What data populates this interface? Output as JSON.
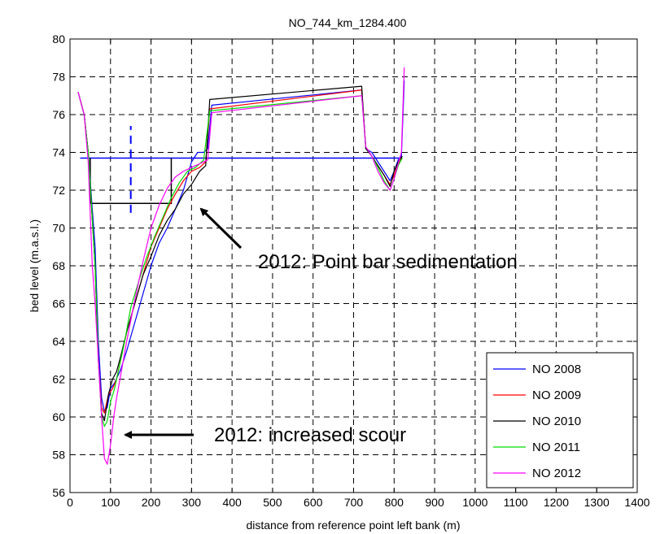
{
  "chart_data": {
    "type": "line",
    "title": "NO_744_km_1284.400",
    "xlabel": "distance from reference point left bank (m)",
    "ylabel": "bed level (m.a.s.l.)",
    "xlim": [
      0,
      1400
    ],
    "ylim": [
      56,
      80
    ],
    "xticks": [
      0,
      100,
      200,
      300,
      400,
      500,
      600,
      700,
      800,
      900,
      1000,
      1100,
      1200,
      1300,
      1400
    ],
    "yticks": [
      56,
      58,
      60,
      62,
      64,
      66,
      68,
      70,
      72,
      74,
      76,
      78,
      80
    ],
    "grid": true,
    "legend_position": "bottom-right",
    "series": [
      {
        "name": "NO 2008",
        "color": "#0000ff",
        "x": [
          20,
          35,
          45,
          55,
          62,
          70,
          78,
          85,
          92,
          100,
          110,
          125,
          140,
          160,
          180,
          200,
          220,
          240,
          260,
          280,
          300,
          315,
          330,
          340,
          350,
          720,
          730,
          745,
          760,
          775,
          790,
          800,
          810,
          818,
          825
        ],
        "y": [
          77.2,
          76,
          74,
          71,
          69,
          64,
          61,
          60.3,
          60.5,
          61.5,
          61.8,
          62.5,
          63.5,
          65,
          66.5,
          68,
          69.2,
          70,
          71,
          72,
          73.5,
          74,
          74,
          74.2,
          76.5,
          77.3,
          74.2,
          74,
          73.5,
          73,
          72.5,
          73,
          73.6,
          73.8,
          77.8
        ]
      },
      {
        "name": "NO 2009",
        "color": "#ff0000",
        "x": [
          20,
          35,
          45,
          55,
          62,
          70,
          78,
          85,
          95,
          105,
          115,
          125,
          140,
          160,
          180,
          200,
          220,
          240,
          260,
          280,
          300,
          320,
          335,
          345,
          720,
          730,
          745,
          760,
          775,
          790,
          800,
          810,
          820
        ],
        "y": [
          77.2,
          76,
          74,
          70.5,
          68,
          63,
          60.5,
          60.2,
          61.2,
          61.5,
          62,
          63,
          64.5,
          66,
          67.5,
          69,
          70,
          71,
          71.8,
          72.5,
          73,
          73.2,
          73.5,
          76.3,
          77.3,
          74.3,
          73.8,
          73.3,
          72.8,
          72.3,
          72.8,
          73.4,
          73.8
        ]
      },
      {
        "name": "NO 2010",
        "color": "#000000",
        "x": [
          20,
          35,
          45,
          55,
          62,
          70,
          78,
          85,
          95,
          105,
          115,
          125,
          140,
          160,
          180,
          200,
          220,
          240,
          260,
          280,
          300,
          320,
          335,
          345,
          720,
          730,
          745,
          760,
          775,
          790,
          800,
          810,
          820
        ],
        "y": [
          77.2,
          76,
          74,
          70.5,
          68,
          63,
          60.2,
          59.8,
          61.2,
          62,
          62.4,
          63.2,
          64.5,
          66,
          67.5,
          68.5,
          69.6,
          70.4,
          71,
          71.8,
          72.3,
          73,
          73.3,
          76.8,
          77.5,
          74.2,
          73.8,
          73.3,
          72.8,
          72.2,
          73,
          73.5,
          73.8
        ]
      },
      {
        "name": "NO 2011",
        "color": "#00dd00",
        "x": [
          20,
          35,
          45,
          55,
          62,
          70,
          78,
          85,
          92,
          100,
          110,
          120,
          135,
          150,
          170,
          190,
          210,
          230,
          250,
          270,
          290,
          310,
          330,
          345,
          720,
          730,
          745,
          760,
          775,
          790,
          800,
          810,
          820
        ],
        "y": [
          77.2,
          76,
          74,
          70.5,
          68,
          63,
          60,
          59.5,
          59.8,
          60.8,
          61.5,
          62.5,
          64,
          65.8,
          67.2,
          68.5,
          69.6,
          70.6,
          71.6,
          72.4,
          73,
          73.2,
          73.6,
          76.2,
          77,
          74.3,
          73.8,
          73.2,
          72.5,
          72,
          72.6,
          73.3,
          73.7
        ]
      },
      {
        "name": "NO 2012",
        "color": "#ff00ff",
        "x": [
          20,
          35,
          45,
          55,
          62,
          70,
          78,
          85,
          92,
          100,
          108,
          115,
          125,
          140,
          160,
          180,
          200,
          220,
          240,
          260,
          280,
          300,
          320,
          340,
          350,
          720,
          730,
          745,
          760,
          775,
          790,
          800,
          810,
          818,
          825
        ],
        "y": [
          77.2,
          76,
          73.5,
          68,
          66,
          63,
          60,
          57.8,
          57.5,
          58.5,
          60,
          61,
          62.2,
          64,
          66.2,
          68.2,
          70,
          71.2,
          72.1,
          72.7,
          73,
          73.2,
          73.4,
          73.6,
          76.1,
          77,
          74.3,
          73.8,
          73,
          72.4,
          72,
          72.6,
          73.4,
          74,
          78.5
        ]
      }
    ],
    "reference_lines": [
      {
        "color": "#0000ff",
        "x": [
          25,
          820
        ],
        "y": [
          73.7,
          73.7
        ]
      },
      {
        "color": "#0000ff",
        "dashed": true,
        "x": [
          150,
          150
        ],
        "y": [
          70.8,
          75.4
        ]
      },
      {
        "color": "#000000",
        "x": [
          50,
          50,
          250,
          250
        ],
        "y": [
          73.7,
          71.3,
          71.3,
          73.7
        ]
      }
    ],
    "annotations": [
      {
        "text": "2012: Point bar sedimentation",
        "arrow_to": [
          270,
          70.5
        ]
      },
      {
        "text": "2012: increased scour",
        "arrow_to": [
          120,
          59
        ]
      }
    ]
  }
}
